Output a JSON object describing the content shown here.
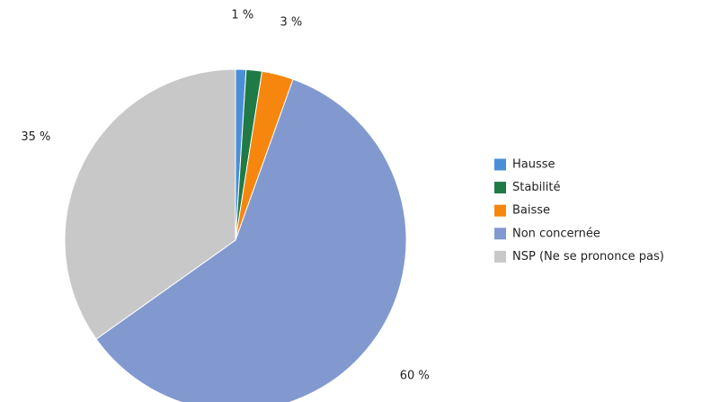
{
  "chart_data": {
    "type": "pie",
    "categories": [
      "Hausse",
      "Stabilité",
      "Baisse",
      "Non concernée",
      "NSP (Ne se prononce pas)"
    ],
    "values": [
      1,
      1.5,
      3,
      60,
      35
    ],
    "value_labels": [
      "1 %",
      null,
      "3 %",
      "60 %",
      "35 %"
    ],
    "colors": [
      "#4a8fd6",
      "#1f7a45",
      "#f7860f",
      "#8299d0",
      "#c8c8c8"
    ],
    "legend": "right"
  }
}
